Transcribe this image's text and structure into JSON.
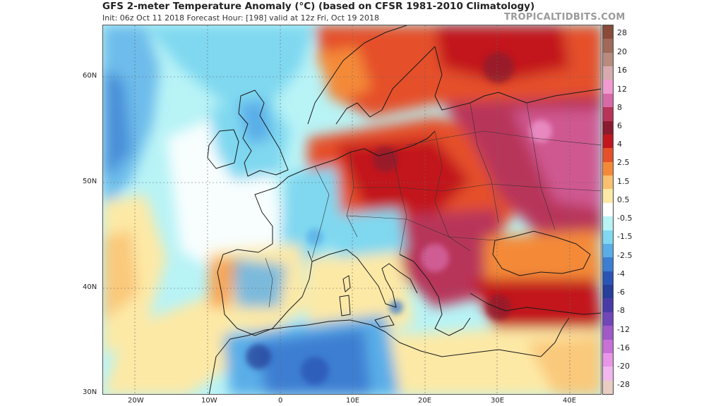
{
  "header": {
    "title": "GFS 2-meter Temperature Anomaly (°C) (based on CFSR 1981-2010 Climatology)",
    "subtitle": "Init: 06z Oct 11 2018   Forecast Hour: [198]   valid at 12z Fri, Oct 19 2018",
    "brand": "TROPICALTIDBITS.COM"
  },
  "map": {
    "region": "Europe",
    "lat_labels": [
      "60N",
      "50N",
      "40N",
      "30N"
    ],
    "lon_labels": [
      "20W",
      "10W",
      "0",
      "10E",
      "20E",
      "30E",
      "40E"
    ],
    "lat_range": [
      30,
      66
    ],
    "lon_range": [
      -25,
      44
    ]
  },
  "colorbar": {
    "labels": [
      "28",
      "20",
      "16",
      "12",
      "8",
      "6",
      "4",
      "2.5",
      "1.5",
      "0.5",
      "-0.5",
      "-1.5",
      "-2.5",
      "-4",
      "-6",
      "-8",
      "-12",
      "-16",
      "-20",
      "-28"
    ],
    "colors": [
      "#8a4a3a",
      "#a06a5a",
      "#b98a7e",
      "#d8a9ad",
      "#f09ad0",
      "#d86aa8",
      "#b8345a",
      "#8c1a2e",
      "#c2161e",
      "#e5502a",
      "#f48a38",
      "#f9c070",
      "#fde9a6",
      "#ffffff",
      "#b8f3f6",
      "#7fd8f0",
      "#5aaee8",
      "#3c7ed2",
      "#2a55b4",
      "#263f98",
      "#4a3aa8",
      "#7046b8",
      "#a05ac8",
      "#c870d8",
      "#e896e8",
      "#f2b8ee",
      "#e9cdc3"
    ]
  }
}
